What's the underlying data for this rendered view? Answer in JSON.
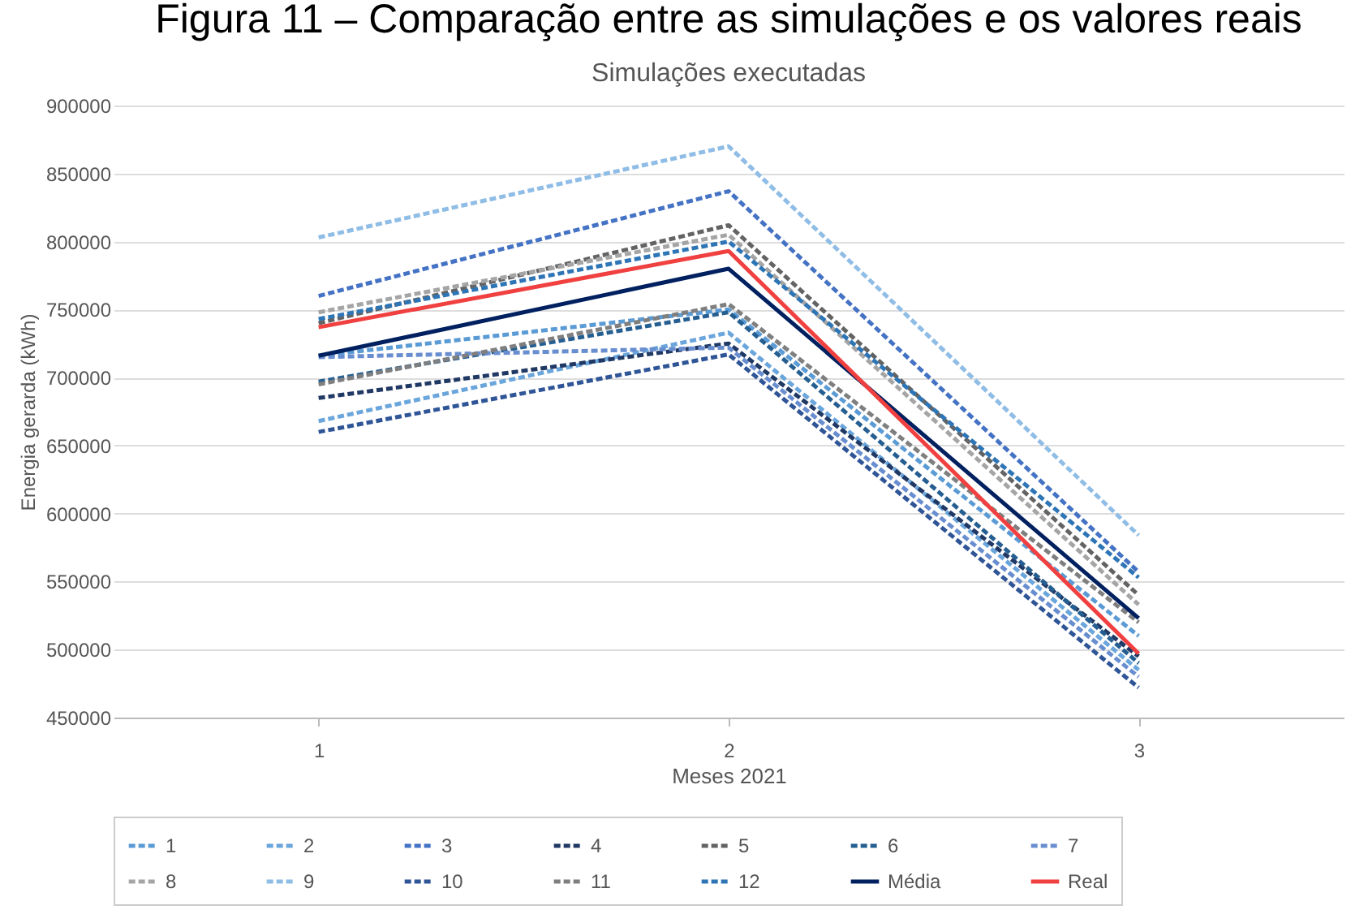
{
  "chart_data": {
    "type": "line",
    "title": "Figura 11 – Comparação entre as simulações e os valores reais",
    "subtitle": "Simulações executadas",
    "xlabel": "Meses 2021",
    "ylabel": "Energia gerarda (kWh)",
    "categories": [
      "1",
      "2",
      "3"
    ],
    "series": [
      {
        "name": "1",
        "color": "#5b9bd5",
        "line_style": "dashed",
        "values": [
          716000,
          750000,
          510000
        ]
      },
      {
        "name": "2",
        "color": "#6aa6dc",
        "line_style": "dashed",
        "values": [
          668000,
          733000,
          485000
        ]
      },
      {
        "name": "3",
        "color": "#4472c4",
        "line_style": "dashed",
        "values": [
          760000,
          837000,
          557000
        ]
      },
      {
        "name": "4",
        "color": "#203864",
        "line_style": "dashed",
        "values": [
          685000,
          725000,
          495000
        ]
      },
      {
        "name": "5",
        "color": "#636363",
        "line_style": "dashed",
        "values": [
          740000,
          812000,
          540000
        ]
      },
      {
        "name": "6",
        "color": "#255e91",
        "line_style": "dashed",
        "values": [
          697000,
          748000,
          490000
        ]
      },
      {
        "name": "7",
        "color": "#698ed0",
        "line_style": "dashed",
        "values": [
          715000,
          722000,
          480000
        ]
      },
      {
        "name": "8",
        "color": "#a5a5a5",
        "line_style": "dashed",
        "values": [
          748000,
          805000,
          533000
        ]
      },
      {
        "name": "9",
        "color": "#8fbde6",
        "line_style": "dashed",
        "values": [
          803000,
          870000,
          584000
        ]
      },
      {
        "name": "10",
        "color": "#2f5597",
        "line_style": "dashed",
        "values": [
          660000,
          717000,
          472000
        ]
      },
      {
        "name": "11",
        "color": "#7f7f7f",
        "line_style": "dashed",
        "values": [
          695000,
          754000,
          520000
        ]
      },
      {
        "name": "12",
        "color": "#2e75b6",
        "line_style": "dashed",
        "values": [
          743000,
          800000,
          553000
        ]
      },
      {
        "name": "Média",
        "color": "#002060",
        "line_style": "solid",
        "values": [
          716000,
          780000,
          523000
        ]
      },
      {
        "name": "Real",
        "color": "#f04040",
        "line_style": "solid",
        "values": [
          737000,
          793000,
          497000
        ]
      }
    ],
    "ylim": [
      450000,
      900000
    ],
    "yticks": [
      450000,
      500000,
      550000,
      600000,
      650000,
      700000,
      750000,
      800000,
      850000,
      900000
    ],
    "grid": "y",
    "legend": "bottom",
    "marker": "none"
  }
}
